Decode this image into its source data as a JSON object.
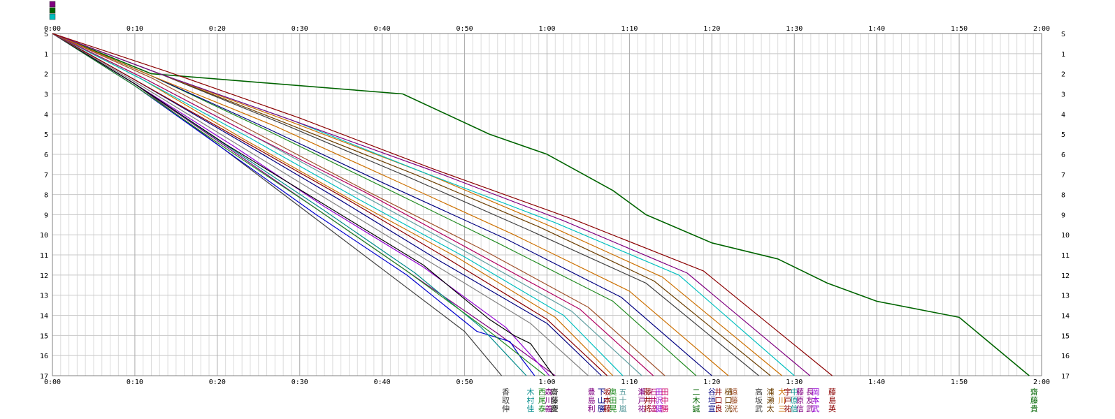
{
  "chart_data": {
    "type": "line",
    "title": "",
    "xlabel": "",
    "ylabel": "",
    "x_axis": {
      "unit": "elapsed time (h:mm)",
      "range_minutes": [
        0,
        120
      ],
      "tick_labels": [
        "0:00",
        "0:10",
        "0:20",
        "0:30",
        "0:40",
        "0:50",
        "1:00",
        "1:10",
        "1:20",
        "1:30",
        "1:40",
        "1:50",
        "2:00"
      ],
      "minor_step_minutes": 1
    },
    "y_axis": {
      "direction": "down",
      "range": [
        0,
        17
      ],
      "tick_labels": [
        "S",
        "1",
        "2",
        "3",
        "4",
        "5",
        "6",
        "7",
        "8",
        "9",
        "10",
        "11",
        "12",
        "13",
        "14",
        "15",
        "16",
        "17"
      ],
      "checkpoint_positions": [
        0,
        2.0,
        3.0,
        4.8,
        5.6,
        7.8,
        9.5,
        11.7,
        12.2,
        13.2,
        16.2,
        17.0,
        18.9,
        19.6,
        22.6,
        23.1,
        24.0,
        24.4
      ]
    },
    "grid": true,
    "legend": "none",
    "colors": [
      "#800080",
      "#006400",
      "#00bfbf",
      "#000080",
      "#808080",
      "#8b0000",
      "#cc7000",
      "#0000cd",
      "#9400d3",
      "#b00060",
      "#228b22",
      "#5f9ea0",
      "#404040",
      "#a0522d"
    ],
    "runner_labels": [
      {
        "x": 55.0,
        "chars": [
          "香",
          "取",
          "伸"
        ],
        "color": "#404040"
      },
      {
        "x": 58.0,
        "chars": [
          "木",
          "村",
          "佳"
        ],
        "color": "#008b8b"
      },
      {
        "x": 59.4,
        "chars": [
          "西",
          "尾",
          "泰"
        ],
        "color": "#228b22"
      },
      {
        "x": 60.2,
        "chars": [
          "森",
          "川",
          "義"
        ],
        "color": "#800080"
      },
      {
        "x": 60.9,
        "chars": [
          "齋",
          "藤",
          "慶"
        ],
        "color": "#000000"
      },
      {
        "x": 65.4,
        "chars": [
          "豊",
          "島",
          "利"
        ],
        "color": "#800080"
      },
      {
        "x": 66.6,
        "chars": [
          "下",
          "山",
          "勝"
        ],
        "color": "#000080"
      },
      {
        "x": 67.3,
        "chars": [
          "坂",
          "本",
          "藤"
        ],
        "color": "#8b0000"
      },
      {
        "x": 68.0,
        "chars": [
          "奥",
          "田",
          "晃"
        ],
        "color": "#228b22"
      },
      {
        "x": 69.2,
        "chars": [
          "五",
          "十",
          "嵐"
        ],
        "color": "#5f9ea0"
      },
      {
        "x": 71.5,
        "chars": [
          "瀬",
          "戸",
          "祐"
        ],
        "color": "#800080"
      },
      {
        "x": 72.2,
        "chars": [
          "藤",
          "井",
          "将"
        ],
        "color": "#8b0000"
      },
      {
        "x": 72.9,
        "chars": [
          "石",
          "井",
          "達"
        ],
        "color": "#b00060"
      },
      {
        "x": 73.6,
        "chars": [
          "田",
          "沢",
          "健"
        ],
        "color": "#9400d3"
      },
      {
        "x": 74.3,
        "chars": [
          "田",
          "中",
          "勝"
        ],
        "color": "#cc0066"
      },
      {
        "x": 78.1,
        "chars": [
          "二",
          "木",
          "誠"
        ],
        "color": "#006400"
      },
      {
        "x": 80.0,
        "chars": [
          "谷",
          "垣",
          "宣"
        ],
        "color": "#000080"
      },
      {
        "x": 80.8,
        "chars": [
          "井",
          "口",
          "良"
        ],
        "color": "#8b0000"
      },
      {
        "x": 82.0,
        "chars": [
          "樋",
          "口",
          "洸"
        ],
        "color": "#6b3e00"
      },
      {
        "x": 82.7,
        "chars": [
          "遠",
          "藤",
          "洸"
        ],
        "color": "#a0522d"
      },
      {
        "x": 85.7,
        "chars": [
          "高",
          "坂",
          "武"
        ],
        "color": "#404040"
      },
      {
        "x": 87.1,
        "chars": [
          "浦",
          "瀬",
          "太"
        ],
        "color": "#6b3e00"
      },
      {
        "x": 88.5,
        "chars": [
          "大",
          "川",
          "三"
        ],
        "color": "#cc7000"
      },
      {
        "x": 89.2,
        "chars": [
          "宇",
          "戸",
          "祐"
        ],
        "color": "#8b0000"
      },
      {
        "x": 90.0,
        "chars": [
          "中",
          "原",
          "信"
        ],
        "color": "#008b8b"
      },
      {
        "x": 90.7,
        "chars": [
          "藤",
          "原",
          "信"
        ],
        "color": "#800080"
      },
      {
        "x": 91.9,
        "chars": [
          "長",
          "友",
          "武"
        ],
        "color": "#800080"
      },
      {
        "x": 92.6,
        "chars": [
          "岡",
          "本",
          "武"
        ],
        "color": "#9400d3"
      },
      {
        "x": 94.6,
        "chars": [
          "藤",
          "島",
          "英"
        ],
        "color": "#8b0000"
      },
      {
        "x": 119.1,
        "chars": [
          "齋",
          "藤",
          "貴"
        ],
        "color": "#006400"
      }
    ],
    "series": [
      {
        "color": "#006400",
        "x": [
          0,
          12,
          42.5,
          53,
          60,
          68,
          72,
          80,
          88,
          94,
          100,
          110,
          118.5
        ],
        "y": [
          0,
          2.0,
          3.0,
          5.0,
          6.0,
          7.8,
          9.0,
          10.4,
          11.2,
          12.4,
          13.3,
          14.1,
          17.0
        ]
      },
      {
        "color": "#404040",
        "x": [
          0,
          10,
          20,
          30,
          40,
          50,
          54.5
        ],
        "y": [
          0,
          2.5,
          5.5,
          8.6,
          11.7,
          14.8,
          17.0
        ]
      },
      {
        "color": "#800080",
        "x": [
          0,
          10,
          21,
          32,
          43,
          54,
          61
        ],
        "y": [
          0,
          2.5,
          5.6,
          8.7,
          11.8,
          14.9,
          17.0
        ]
      },
      {
        "color": "#0000cd",
        "x": [
          0,
          10,
          21,
          32,
          43,
          51.5,
          55.5,
          57,
          58.5
        ],
        "y": [
          0,
          2.6,
          5.8,
          9.0,
          12.0,
          14.8,
          15.3,
          16.2,
          17.0
        ]
      },
      {
        "color": "#008b8b",
        "x": [
          0,
          10,
          22,
          33,
          44,
          52,
          57.5
        ],
        "y": [
          0,
          2.5,
          5.8,
          8.8,
          11.9,
          14.6,
          17.0
        ]
      },
      {
        "color": "#228b22",
        "x": [
          0,
          10,
          21,
          32,
          43,
          53,
          59.8
        ],
        "y": [
          0,
          2.6,
          5.7,
          8.7,
          11.8,
          14.8,
          17.0
        ]
      },
      {
        "color": "#9400d3",
        "x": [
          0,
          10,
          22,
          33,
          45,
          55,
          60.3
        ],
        "y": [
          0,
          2.5,
          5.6,
          8.6,
          11.6,
          14.6,
          17.0
        ]
      },
      {
        "color": "#000000",
        "x": [
          0,
          10,
          21,
          33,
          45,
          53,
          56,
          58,
          60.8
        ],
        "y": [
          0,
          2.5,
          5.5,
          8.5,
          11.5,
          14.2,
          15.0,
          15.4,
          17.0
        ]
      },
      {
        "color": "#808080",
        "x": [
          0,
          10,
          22,
          34,
          46,
          58,
          65
        ],
        "y": [
          0,
          2.4,
          5.4,
          8.4,
          11.4,
          14.4,
          17.0
        ]
      },
      {
        "color": "#000080",
        "x": [
          0,
          10,
          23,
          35,
          47,
          60,
          66.6
        ],
        "y": [
          0,
          2.3,
          5.4,
          8.3,
          11.3,
          14.4,
          17.0
        ]
      },
      {
        "color": "#8b0000",
        "x": [
          0,
          10,
          23,
          36,
          48,
          60,
          67.3
        ],
        "y": [
          0,
          2.3,
          5.3,
          8.3,
          11.2,
          14.2,
          17.0
        ]
      },
      {
        "color": "#cc7000",
        "x": [
          0,
          11,
          23,
          36,
          49,
          61,
          68
        ],
        "y": [
          0,
          2.3,
          5.2,
          8.2,
          11.1,
          14.1,
          17.0
        ]
      },
      {
        "color": "#00bfbf",
        "x": [
          0,
          11,
          24,
          37,
          50,
          62,
          69.2
        ],
        "y": [
          0,
          2.3,
          5.2,
          8.2,
          11.1,
          14.0,
          17.0
        ]
      },
      {
        "color": "#5f9ea0",
        "x": [
          0,
          11,
          24,
          37,
          50,
          63,
          71.5
        ],
        "y": [
          0,
          2.2,
          5.0,
          7.9,
          10.8,
          13.8,
          17.0
        ]
      },
      {
        "color": "#b00060",
        "x": [
          0,
          11,
          24,
          38,
          51,
          64,
          72.9
        ],
        "y": [
          0,
          2.2,
          5.0,
          7.9,
          10.8,
          13.7,
          17.0
        ]
      },
      {
        "color": "#a0522d",
        "x": [
          0,
          12,
          25,
          38,
          52,
          65,
          74.3
        ],
        "y": [
          0,
          2.2,
          5.0,
          7.8,
          10.7,
          13.6,
          17.0
        ]
      },
      {
        "color": "#228b22",
        "x": [
          0,
          12,
          26,
          40,
          54,
          68,
          78.1
        ],
        "y": [
          0,
          2.1,
          4.8,
          7.6,
          10.4,
          13.3,
          17.0
        ]
      },
      {
        "color": "#000080",
        "x": [
          0,
          12,
          26,
          40,
          55,
          69,
          80
        ],
        "y": [
          0,
          2.1,
          4.7,
          7.4,
          10.2,
          13.1,
          17.0
        ]
      },
      {
        "color": "#cc7000",
        "x": [
          0,
          12,
          27,
          41,
          56,
          70,
          82
        ],
        "y": [
          0,
          2.1,
          4.6,
          7.2,
          10.0,
          12.8,
          17.0
        ]
      },
      {
        "color": "#404040",
        "x": [
          0,
          13,
          28,
          43,
          58,
          72,
          85.7
        ],
        "y": [
          0,
          2.0,
          4.5,
          7.1,
          9.8,
          12.4,
          17.0
        ]
      },
      {
        "color": "#6b3e00",
        "x": [
          0,
          13,
          28,
          44,
          59,
          73,
          87.1
        ],
        "y": [
          0,
          2.0,
          4.4,
          7.0,
          9.6,
          12.3,
          17.0
        ]
      },
      {
        "color": "#cc7000",
        "x": [
          0,
          13,
          29,
          45,
          60,
          74,
          88.5
        ],
        "y": [
          0,
          2.0,
          4.4,
          6.9,
          9.5,
          12.1,
          17.0
        ]
      },
      {
        "color": "#00bfbf",
        "x": [
          0,
          13,
          29,
          45,
          61,
          76,
          90
        ],
        "y": [
          0,
          2.0,
          4.3,
          6.9,
          9.4,
          12.0,
          17.0
        ]
      },
      {
        "color": "#800080",
        "x": [
          0,
          13,
          29,
          46,
          62,
          77,
          91.9
        ],
        "y": [
          0,
          2.0,
          4.3,
          6.8,
          9.3,
          11.9,
          17.0
        ]
      },
      {
        "color": "#8b0000",
        "x": [
          0,
          14,
          30,
          46,
          63,
          79,
          94.6
        ],
        "y": [
          0,
          1.9,
          4.2,
          6.7,
          9.2,
          11.8,
          17.0
        ]
      }
    ]
  }
}
